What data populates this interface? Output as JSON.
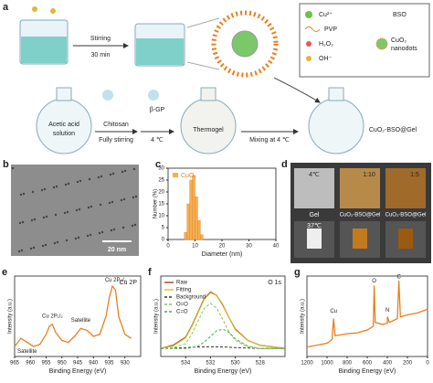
{
  "panel_a": {
    "label": "a",
    "legend": {
      "cu": "Cu²⁺",
      "bso": "BSO",
      "pvp": "PVP",
      "h2o2": "H₂O₂",
      "oh": "OH⁻",
      "cuo2": [
        "CuO₂",
        "nanodots"
      ]
    },
    "step1": [
      "Stirring",
      "30 min"
    ],
    "step2": [
      "Chitosan",
      "Fully stirring"
    ],
    "step3": [
      "β-GP",
      "4 ℃"
    ],
    "step4": "Mixing at 4 ℃",
    "flask1": [
      "Acetic acid",
      "solution"
    ],
    "flask2": "Thermogel",
    "flask3": "CuO₂-BSO@Gel"
  },
  "panel_b": {
    "label": "b",
    "scale_bar": "20 nm"
  },
  "panel_c": {
    "label": "c",
    "chart": {
      "type": "histogram",
      "series_name": "CuO₂",
      "color": "#f6ad52",
      "bins": [
        6,
        7,
        8,
        9,
        10,
        11,
        12,
        13
      ],
      "counts": [
        3,
        15,
        25,
        27,
        18,
        8,
        2
      ],
      "xlabel": "Diameter (nm)",
      "ylabel": "Number (%)",
      "xlim": [
        0,
        40
      ],
      "xticks": [
        0,
        10,
        20,
        30,
        40
      ],
      "ylim": [
        0,
        30
      ],
      "yticks": [
        0,
        5,
        10,
        15,
        20,
        25,
        30
      ]
    }
  },
  "panel_d": {
    "label": "d",
    "top_labels": [
      "4℃",
      "1:10",
      "1:5"
    ],
    "bottom_labels": [
      "Gel",
      "CuO₂-BSO@Gel",
      "CuO₂-BSO@Gel"
    ],
    "bottom_temp": "37℃"
  },
  "panel_e": {
    "label": "e",
    "chart": {
      "type": "line",
      "title": "Cu 2P",
      "annotations": [
        "Satellite",
        "Cu 2P₁/₂",
        "Satellite",
        "Cu 2P₃/₂"
      ],
      "xlabel": "Binding Energy (eV)",
      "ylabel": "Intensity (a.u.)",
      "xlim": [
        965,
        925
      ],
      "xticks": [
        965,
        960,
        955,
        950,
        945,
        940,
        935,
        930
      ],
      "ylim": [
        20,
        100
      ],
      "x": [
        965,
        963,
        961,
        959,
        957,
        955,
        954,
        953,
        952,
        950,
        948,
        946,
        944,
        942,
        940,
        938,
        936,
        935,
        934,
        933,
        932,
        930,
        928
      ],
      "series": [
        {
          "color": "#e8801e",
          "values": [
            30,
            38,
            34,
            30,
            32,
            42,
            50,
            52,
            44,
            36,
            34,
            40,
            48,
            46,
            40,
            42,
            60,
            78,
            90,
            86,
            60,
            42,
            38
          ]
        }
      ]
    }
  },
  "panel_f": {
    "label": "f",
    "chart": {
      "type": "line",
      "title": "O 1s",
      "xlabel": "Binding Energy (eV)",
      "ylabel": "Intensity (a.u.)",
      "xlim": [
        536,
        526
      ],
      "xticks": [
        534,
        532,
        530,
        528
      ],
      "ylim": [
        0,
        100
      ],
      "x": [
        536,
        535,
        534,
        533.5,
        533,
        532.5,
        532,
        531.5,
        531,
        530.5,
        530,
        529,
        528,
        527,
        526
      ],
      "series": [
        {
          "name": "Raw",
          "color": "#a0522d",
          "values": [
            10,
            14,
            24,
            38,
            55,
            72,
            80,
            76,
            64,
            48,
            34,
            20,
            14,
            12,
            10
          ]
        },
        {
          "name": "Fitting",
          "color": "#e3c22a",
          "values": [
            10,
            13,
            23,
            37,
            54,
            71,
            79,
            76,
            65,
            48,
            33,
            20,
            14,
            12,
            10
          ]
        },
        {
          "name": "Background",
          "color": "#333333",
          "values": [
            10,
            10.5,
            11,
            11.5,
            12,
            12,
            12,
            12,
            12,
            11.5,
            11,
            10.5,
            10,
            10,
            10
          ]
        },
        {
          "name": "O=O",
          "color": "#8bc34a",
          "values": [
            10,
            11,
            16,
            28,
            44,
            60,
            66,
            60,
            46,
            30,
            20,
            12,
            10,
            10,
            10
          ]
        },
        {
          "name": "C=O",
          "color": "#4caf50",
          "values": [
            10,
            10,
            10,
            11,
            13,
            18,
            25,
            32,
            34,
            30,
            22,
            13,
            10,
            10,
            10
          ]
        }
      ]
    }
  },
  "panel_g": {
    "label": "g",
    "chart": {
      "type": "line",
      "annotations": [
        "Cu",
        "O",
        "N",
        "C"
      ],
      "xlabel": "Binding Energy (eV)",
      "ylabel": "Intensity (a.u.)",
      "xlim": [
        1200,
        0
      ],
      "xticks": [
        1200,
        1000,
        800,
        600,
        400,
        200,
        0
      ],
      "ylim": [
        20,
        105
      ],
      "x": [
        1200,
        1100,
        1000,
        950,
        935,
        920,
        800,
        700,
        600,
        540,
        531,
        520,
        450,
        400,
        399,
        380,
        300,
        285,
        270,
        200,
        100,
        0
      ],
      "series": [
        {
          "color": "#e8801e",
          "values": [
            30,
            32,
            34,
            38,
            60,
            42,
            44,
            45,
            48,
            52,
            95,
            56,
            54,
            55,
            62,
            56,
            60,
            100,
            62,
            64,
            66,
            70
          ]
        }
      ]
    }
  }
}
